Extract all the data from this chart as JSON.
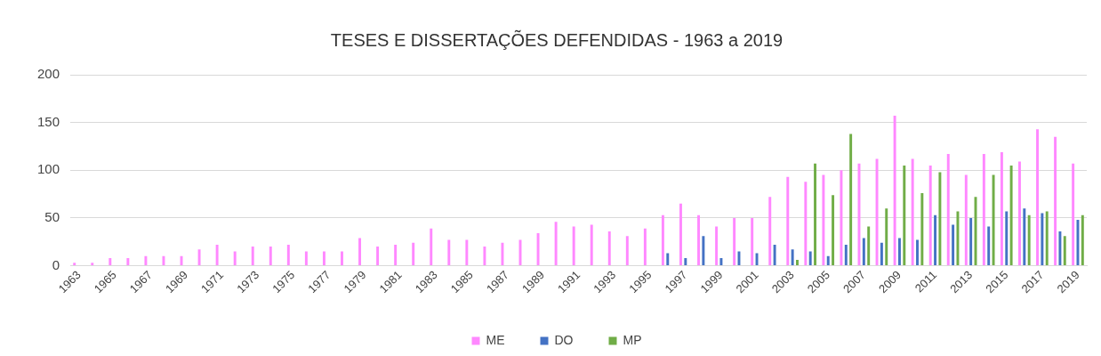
{
  "chart_data": {
    "type": "bar",
    "title": "TESES E DISSERTAÇÕES DEFENDIDAS - 1963 a 2019",
    "categories": [
      "1963",
      null,
      "1965",
      null,
      "1967",
      null,
      "1969",
      null,
      "1971",
      null,
      "1973",
      null,
      "1975",
      null,
      "1977",
      null,
      "1979",
      null,
      "1981",
      null,
      "1983",
      null,
      "1985",
      null,
      "1987",
      null,
      "1989",
      null,
      "1991",
      null,
      "1993",
      null,
      "1995",
      null,
      "1997",
      null,
      "1999",
      null,
      "2001",
      null,
      "2003",
      null,
      "2005",
      null,
      "2007",
      null,
      "2009",
      null,
      "2011",
      null,
      "2013",
      null,
      "2015",
      null,
      "2017",
      null,
      "2019"
    ],
    "series": [
      {
        "name": "ME",
        "color": "#ff88ff",
        "values": [
          3,
          3,
          8,
          8,
          10,
          10,
          10,
          17,
          22,
          15,
          20,
          20,
          22,
          15,
          15,
          15,
          29,
          20,
          22,
          24,
          39,
          27,
          27,
          20,
          24,
          27,
          34,
          46,
          41,
          43,
          36,
          31,
          39,
          53,
          65,
          53,
          41,
          50,
          50,
          72,
          93,
          88,
          95,
          100,
          107,
          112,
          157,
          112,
          105,
          117,
          95,
          117,
          119,
          109,
          143,
          135,
          107
        ]
      },
      {
        "name": "DO",
        "color": "#4472c4",
        "values": [
          null,
          null,
          null,
          null,
          null,
          null,
          null,
          null,
          null,
          null,
          null,
          null,
          null,
          null,
          null,
          null,
          null,
          null,
          null,
          null,
          null,
          null,
          null,
          null,
          null,
          null,
          null,
          null,
          null,
          null,
          null,
          null,
          null,
          13,
          8,
          31,
          8,
          15,
          13,
          22,
          17,
          15,
          10,
          22,
          29,
          24,
          29,
          27,
          53,
          43,
          50,
          41,
          57,
          60,
          55,
          36,
          48
        ]
      },
      {
        "name": "MP",
        "color": "#70ad47",
        "values": [
          null,
          null,
          null,
          null,
          null,
          null,
          null,
          null,
          null,
          null,
          null,
          null,
          null,
          null,
          null,
          null,
          null,
          null,
          null,
          null,
          null,
          null,
          null,
          null,
          null,
          null,
          null,
          null,
          null,
          null,
          null,
          null,
          null,
          null,
          null,
          null,
          null,
          null,
          null,
          null,
          6,
          107,
          74,
          138,
          41,
          60,
          105,
          76,
          98,
          57,
          72,
          95,
          105,
          53,
          57,
          31,
          53
        ]
      }
    ],
    "ylim": [
      0,
      200
    ],
    "yticks": [
      0,
      50,
      100,
      150,
      200
    ],
    "grid": "y",
    "legend": "bottom"
  }
}
